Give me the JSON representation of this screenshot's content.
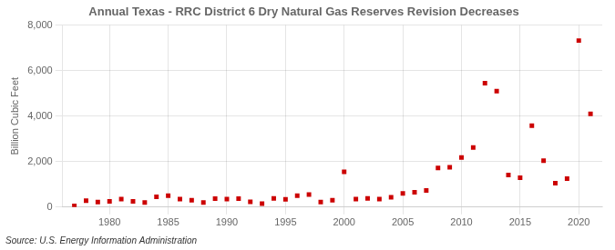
{
  "chart_data": {
    "type": "scatter",
    "title": "Annual Texas - RRC District 6 Dry Natural Gas Reserves Revision Decreases",
    "y_label": "Billion Cubic Feet",
    "annotations": [
      "Source: U.S. Energy Information Administration"
    ],
    "x": [
      1977,
      1978,
      1979,
      1980,
      1981,
      1982,
      1983,
      1984,
      1985,
      1986,
      1987,
      1988,
      1989,
      1990,
      1991,
      1992,
      1993,
      1994,
      1995,
      1996,
      1997,
      1998,
      1999,
      2000,
      2001,
      2002,
      2003,
      2004,
      2005,
      2006,
      2007,
      2008,
      2009,
      2010,
      2011,
      2012,
      2013,
      2014,
      2015,
      2016,
      2017,
      2018,
      2019,
      2020,
      2021
    ],
    "values": [
      50,
      280,
      220,
      250,
      350,
      250,
      200,
      450,
      500,
      350,
      300,
      200,
      370,
      350,
      370,
      230,
      150,
      380,
      340,
      500,
      550,
      220,
      300,
      1550,
      350,
      380,
      350,
      430,
      600,
      650,
      730,
      1720,
      1750,
      2180,
      2620,
      5450,
      5100,
      1410,
      1290,
      3580,
      2040,
      1050,
      1250,
      7320,
      4100
    ],
    "color": "#cc0000",
    "marker": "square",
    "xlim": [
      1976,
      2022
    ],
    "xticks": [
      1980,
      1985,
      1990,
      1995,
      2000,
      2005,
      2010,
      2015,
      2020
    ],
    "ylim": [
      0,
      8000
    ],
    "yticks": [
      0,
      {
        "value": 2000,
        "label": "2,000"
      },
      {
        "value": 4000,
        "label": "4,000"
      },
      {
        "value": 6000,
        "label": "6,000"
      },
      {
        "value": 8000,
        "label": "8,000"
      }
    ],
    "grid": true
  }
}
